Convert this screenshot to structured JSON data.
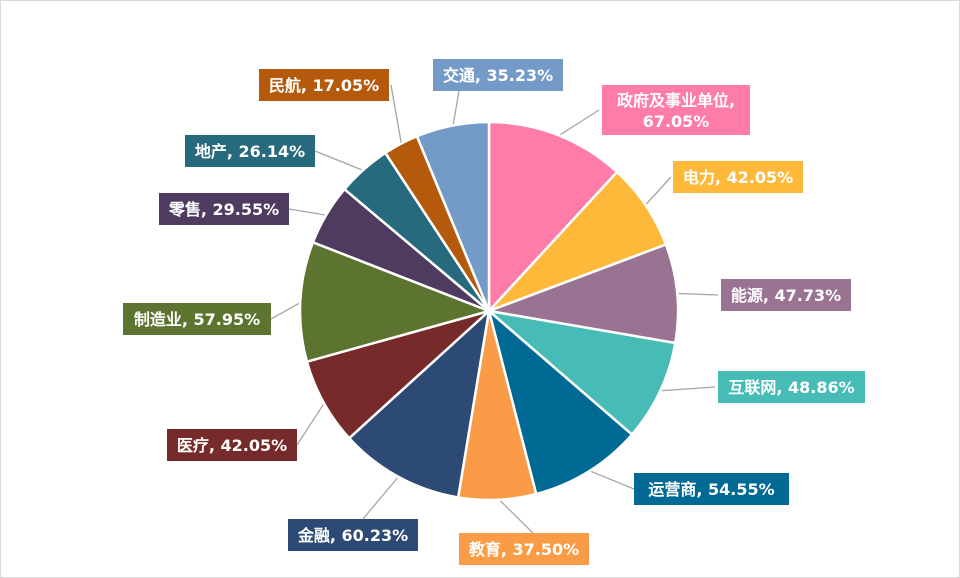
{
  "chart_data": {
    "type": "pie",
    "title": "",
    "slices": [
      {
        "label": "政府及事业单位",
        "value": 67.05,
        "value_text": "67.05%",
        "color": "#FF7CA8"
      },
      {
        "label": "电力",
        "value": 42.05,
        "value_text": "42.05%",
        "color": "#FFB93A"
      },
      {
        "label": "能源",
        "value": 47.73,
        "value_text": "47.73%",
        "color": "#9A7292"
      },
      {
        "label": "互联网",
        "value": 48.86,
        "value_text": "48.86%",
        "color": "#47BCB6"
      },
      {
        "label": "运营商",
        "value": 54.55,
        "value_text": "54.55%",
        "color": "#006A95"
      },
      {
        "label": "教育",
        "value": 37.5,
        "value_text": "37.50%",
        "color": "#F99B47"
      },
      {
        "label": "金融",
        "value": 60.23,
        "value_text": "60.23%",
        "color": "#2D4A74"
      },
      {
        "label": "医疗",
        "value": 42.05,
        "value_text": "42.05%",
        "color": "#762B2A"
      },
      {
        "label": "制造业",
        "value": 57.95,
        "value_text": "57.95%",
        "color": "#5D7430"
      },
      {
        "label": "零售",
        "value": 29.55,
        "value_text": "29.55%",
        "color": "#4F3A60"
      },
      {
        "label": "地产",
        "value": 26.14,
        "value_text": "26.14%",
        "color": "#276A7E"
      },
      {
        "label": "民航",
        "value": 17.05,
        "value_text": "17.05%",
        "color": "#B5590C"
      },
      {
        "label": "交通",
        "value": 35.23,
        "value_text": "35.23%",
        "color": "#749BC8"
      }
    ],
    "start_angle_deg": 0,
    "direction": "clockwise",
    "data_labels": "category, value",
    "legend": "none"
  }
}
